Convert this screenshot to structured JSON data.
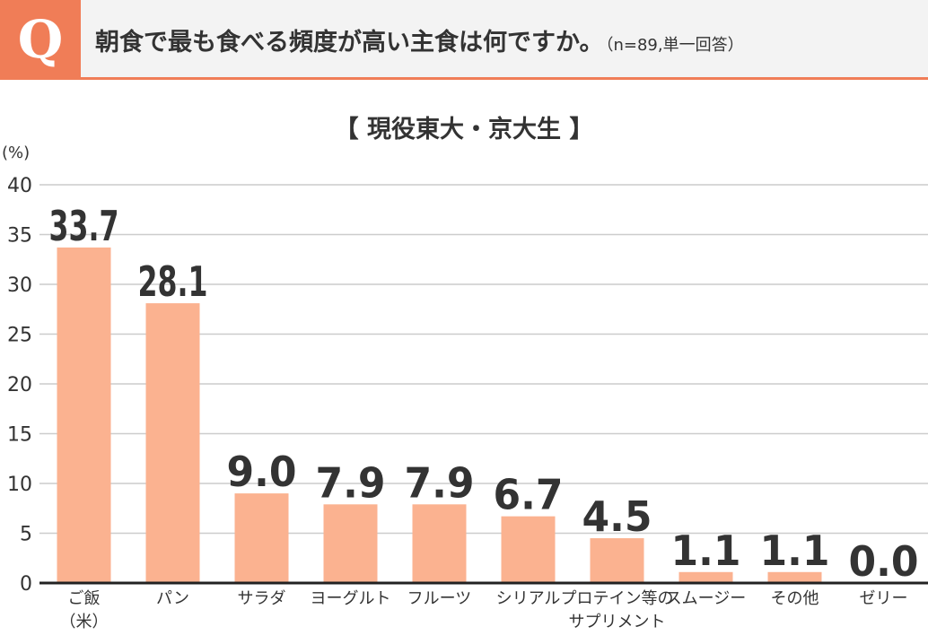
{
  "header": {
    "badge": "Q",
    "question": "朝食で最も食べる頻度が高い主食は何ですか。",
    "sample_note": "（n=89,単一回答）"
  },
  "colors": {
    "accent": "#f07d57",
    "bar": "#fbb290",
    "header_bg": "#f3f3f3",
    "grid": "#cccccc",
    "text": "#333333"
  },
  "chart_data": {
    "type": "bar",
    "title": "【 現役東大・京大生 】",
    "ylabel": "(%)",
    "ylim": [
      0,
      40
    ],
    "yticks": [
      0,
      5,
      10,
      15,
      20,
      25,
      30,
      35,
      40
    ],
    "grid": true,
    "categories": [
      [
        "ご飯",
        "（米）"
      ],
      [
        "パン"
      ],
      [
        "サラダ"
      ],
      [
        "ヨーグルト"
      ],
      [
        "フルーツ"
      ],
      [
        "シリアル"
      ],
      [
        "プロテイン等の",
        "サプリメント"
      ],
      [
        "スムージー"
      ],
      [
        "その他"
      ],
      [
        "ゼリー"
      ]
    ],
    "values": [
      33.7,
      28.1,
      9.0,
      7.9,
      7.9,
      6.7,
      4.5,
      1.1,
      1.1,
      0.0
    ],
    "value_labels": [
      "33.7",
      "28.1",
      "9.0",
      "7.9",
      "7.9",
      "6.7",
      "4.5",
      "1.1",
      "1.1",
      "0.0"
    ]
  }
}
